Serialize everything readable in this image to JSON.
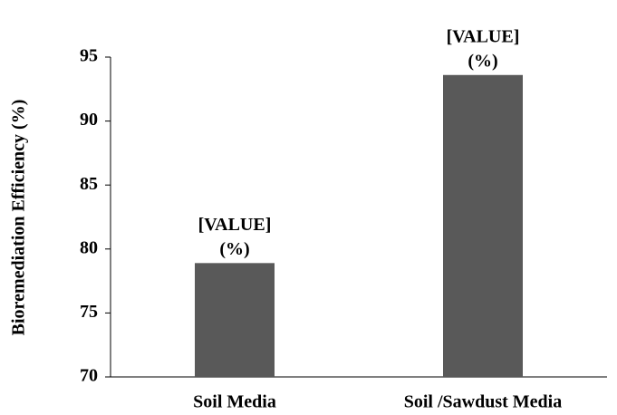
{
  "chart_data": {
    "type": "bar",
    "y_label": "Bioremediation Efficiency (%)",
    "categories": [
      "Soil Media",
      "Soil /Sawdust Media"
    ],
    "values": [
      78.9,
      93.6
    ],
    "value_labels": [
      [
        "[VALUE]",
        "(%)"
      ],
      [
        "[VALUE]",
        "(%)"
      ]
    ],
    "color": "#595959",
    "ylim": [
      70,
      95
    ],
    "yticks": [
      70,
      75,
      80,
      85,
      90,
      95
    ],
    "grid": false
  }
}
